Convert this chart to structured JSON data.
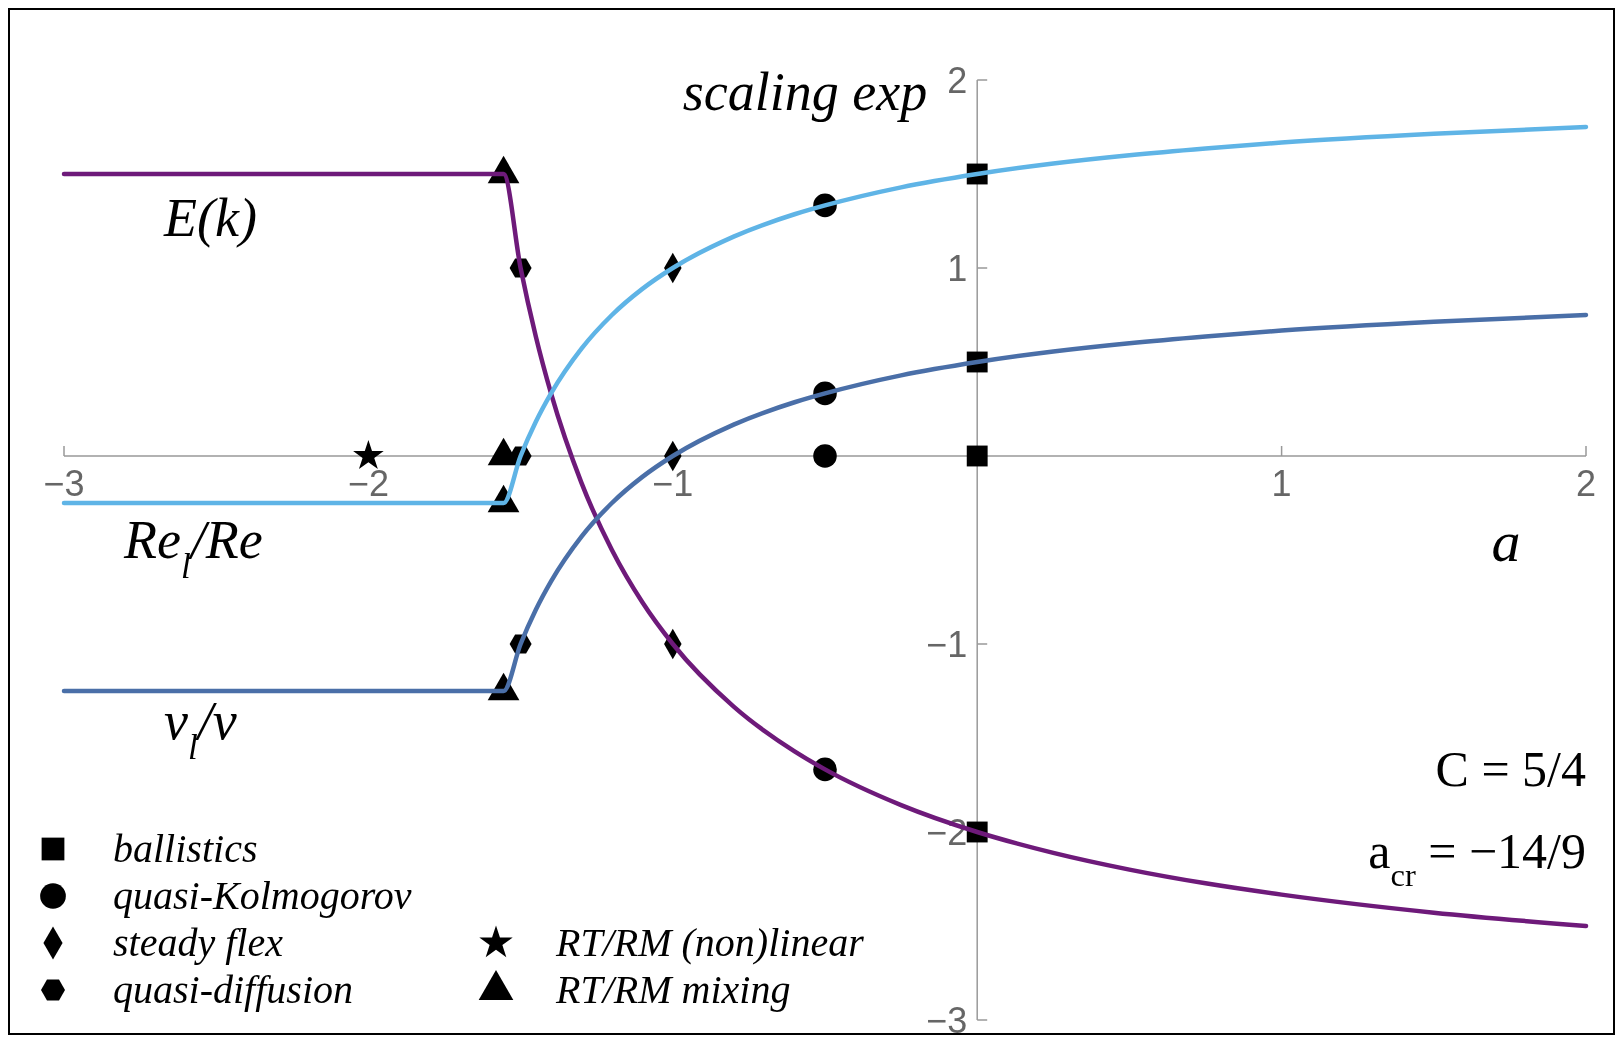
{
  "chart_data": {
    "type": "line",
    "xlabel": "a",
    "ylabel": "scaling exp",
    "xlim": [
      -3,
      2
    ],
    "ylim": [
      -3,
      2
    ],
    "xticks": [
      {
        "value": -3,
        "label": "−3"
      },
      {
        "value": -2,
        "label": "−2"
      },
      {
        "value": -1,
        "label": "−1"
      },
      {
        "value": 0,
        "label": null
      },
      {
        "value": 1,
        "label": "1"
      },
      {
        "value": 2,
        "label": "2"
      }
    ],
    "yticks": [
      {
        "value": -3,
        "label": "−3"
      },
      {
        "value": -2,
        "label": "−2"
      },
      {
        "value": -1,
        "label": "−1"
      },
      {
        "value": 0,
        "label": null
      },
      {
        "value": 1,
        "label": "1"
      },
      {
        "value": 2,
        "label": "2"
      }
    ],
    "grid": false,
    "legend": "bottom left",
    "line_style": "solid",
    "annotations": [
      "C = 5/4",
      "a$_{cr}$ = −14/9"
    ],
    "series": [
      {
        "name": "E(k)",
        "marker": "none",
        "color": "#6e1a7a",
        "x": [
          -3,
          -1.556,
          -1.5,
          -1.45,
          -1.4,
          -1.3,
          -1.2,
          -1.1,
          -1,
          -0.8,
          -0.6,
          -0.5,
          -0.25,
          0,
          0.25,
          0.5,
          0.75,
          1,
          1.5,
          2
        ],
        "values": [
          1.5,
          1.5,
          1,
          0.636,
          0.333,
          -0.143,
          -0.5,
          -0.778,
          -1,
          -1.333,
          -1.571,
          -1.667,
          -1.857,
          -2,
          -2.111,
          -2.2,
          -2.273,
          -2.333,
          -2.429,
          -2.5
        ]
      },
      {
        "name": "Re$_{l}$/Re",
        "marker": "none",
        "color": "#5fb4e6",
        "x": [
          -3,
          -1.556,
          -1.5,
          -1.45,
          -1.4,
          -1.3,
          -1.2,
          -1.1,
          -1,
          -0.8,
          -0.6,
          -0.5,
          -0.25,
          0,
          0.25,
          0.5,
          0.75,
          1,
          1.5,
          2
        ],
        "values": [
          -0.25,
          -0.25,
          0,
          0.182,
          0.333,
          0.571,
          0.75,
          0.889,
          1,
          1.167,
          1.286,
          1.333,
          1.429,
          1.5,
          1.556,
          1.6,
          1.636,
          1.667,
          1.714,
          1.75
        ]
      },
      {
        "name": "ν$_{l}$/ν",
        "marker": "none",
        "color": "#4a6fa8",
        "x": [
          -3,
          -1.556,
          -1.5,
          -1.45,
          -1.4,
          -1.3,
          -1.2,
          -1.1,
          -1,
          -0.8,
          -0.6,
          -0.5,
          -0.25,
          0,
          0.25,
          0.5,
          0.75,
          1,
          1.5,
          2
        ],
        "values": [
          -1.25,
          -1.25,
          -1,
          -0.818,
          -0.667,
          -0.429,
          -0.25,
          -0.111,
          0,
          0.167,
          0.286,
          0.333,
          0.429,
          0.5,
          0.556,
          0.6,
          0.636,
          0.667,
          0.714,
          0.75
        ]
      },
      {
        "name": "ballistics",
        "type": "scatter",
        "marker": "square",
        "color": "#000000",
        "x": [
          0,
          0,
          0,
          0
        ],
        "values": [
          1.5,
          0.5,
          0,
          -2
        ]
      },
      {
        "name": "quasi-Kolmogorov",
        "type": "scatter",
        "marker": "circle",
        "color": "#000000",
        "x": [
          -0.5,
          -0.5,
          -0.5,
          -0.5
        ],
        "values": [
          1.333,
          0.333,
          0,
          -1.667
        ]
      },
      {
        "name": "steady flex",
        "type": "scatter",
        "marker": "diamond",
        "color": "#000000",
        "x": [
          -1,
          -1,
          -1
        ],
        "values": [
          1,
          0,
          -1
        ]
      },
      {
        "name": "quasi-diffusion",
        "type": "scatter",
        "color": "#000000",
        "x": [
          -1.5,
          -1.5,
          -1.5
        ],
        "values": [
          1,
          0,
          -1
        ]
      },
      {
        "name": "RT/RM (non)linear",
        "type": "scatter",
        "marker": "star",
        "color": "#000000",
        "x": [
          -2
        ],
        "values": [
          0
        ]
      },
      {
        "name": "RT/RM mixing",
        "type": "scatter",
        "marker": "triangle",
        "color": "#000000",
        "x": [
          -1.556,
          -1.556,
          -1.556,
          -1.556
        ],
        "values": [
          1.5,
          0,
          -0.25,
          -1.25
        ]
      }
    ]
  }
}
